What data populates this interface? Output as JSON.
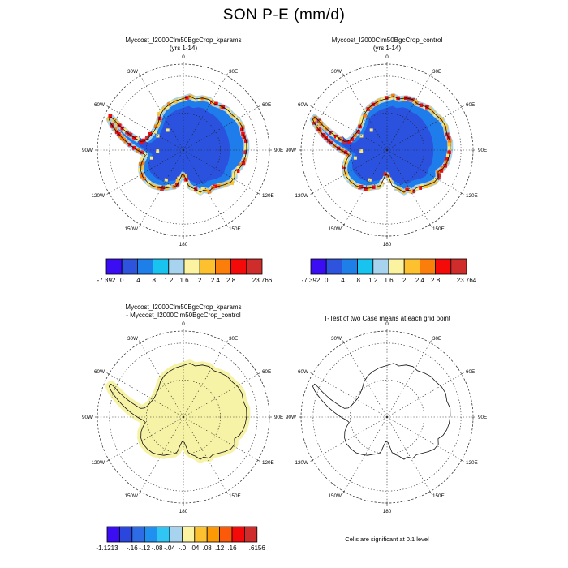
{
  "figure_title": "SON P-E (mm/d)",
  "panels": [
    {
      "id": "kparams",
      "type": "field",
      "title_line1": "Myccost_I2000Clm50BgcCrop_kparams",
      "title_line2": "(yrs 1-14)"
    },
    {
      "id": "control",
      "type": "field",
      "title_line1": "Myccost_I2000Clm50BgcCrop_control",
      "title_line2": "(yrs 1-14)"
    },
    {
      "id": "diff",
      "type": "diff",
      "title_line1": "Myccost_I2000Clm50BgcCrop_kparams",
      "title_line2": "- Myccost_I2000Clm50BgcCrop_control"
    },
    {
      "id": "ttest",
      "type": "ttest",
      "title_line1": "T-Test of two Case means at each grid point",
      "title_line2": "",
      "caption": "Cells are significant at 0.1 level"
    }
  ],
  "graticule_labels": [
    "0",
    "30E",
    "60E",
    "90E",
    "120E",
    "150E",
    "180",
    "150W",
    "120W",
    "90W",
    "60W",
    "30W"
  ],
  "map_colors": {
    "interior_dark": "#2b52de",
    "band_mid": "#1f7ceb",
    "band_light": "#a8d3ee",
    "fringe": [
      "#fde97a",
      "#fdc02e",
      "#fb7d0a",
      "#f50a0a",
      "#cf2c2c"
    ],
    "diff_fill": "#f7f3a6"
  },
  "colorbars": [
    {
      "panel": "kparams",
      "colors": [
        "#3a0df2",
        "#2e54dd",
        "#1f7fe8",
        "#19c3f0",
        "#a8d3ee",
        "#fbf3a0",
        "#fdc02e",
        "#fb7d0a",
        "#f50a0a",
        "#cf2c2c"
      ],
      "labels": [
        {
          "t": "-7.392",
          "e": 0
        },
        {
          "t": "0",
          "e": 1
        },
        {
          "t": ".4",
          "e": 2
        },
        {
          "t": ".8",
          "e": 3
        },
        {
          "t": "1.2",
          "e": 4
        },
        {
          "t": "1.6",
          "e": 5
        },
        {
          "t": "2",
          "e": 6
        },
        {
          "t": "2.4",
          "e": 7
        },
        {
          "t": "2.8",
          "e": 8
        },
        {
          "t": "23.766",
          "e": 10
        }
      ]
    },
    {
      "panel": "control",
      "colors": [
        "#3a0df2",
        "#2e54dd",
        "#1f7fe8",
        "#19c3f0",
        "#a8d3ee",
        "#fbf3a0",
        "#fdc02e",
        "#fb7d0a",
        "#f50a0a",
        "#cf2c2c"
      ],
      "labels": [
        {
          "t": "-7.392",
          "e": 0
        },
        {
          "t": "0",
          "e": 1
        },
        {
          "t": ".4",
          "e": 2
        },
        {
          "t": ".8",
          "e": 3
        },
        {
          "t": "1.2",
          "e": 4
        },
        {
          "t": "1.6",
          "e": 5
        },
        {
          "t": "2",
          "e": 6
        },
        {
          "t": "2.4",
          "e": 7
        },
        {
          "t": "2.8",
          "e": 8
        },
        {
          "t": "23.764",
          "e": 10
        }
      ]
    },
    {
      "panel": "diff",
      "colors": [
        "#3a0df2",
        "#2a46dd",
        "#2e6ce6",
        "#1f90f0",
        "#30c5f2",
        "#a8d3ee",
        "#fbf3a0",
        "#fdc02e",
        "#fc9a06",
        "#fb5a0a",
        "#f50a0a",
        "#cf2c2c"
      ],
      "labels": [
        {
          "t": "-1.1213",
          "e": 0
        },
        {
          "t": "-.16",
          "e": 2
        },
        {
          "t": "-.12",
          "e": 3
        },
        {
          "t": "-.08",
          "e": 4
        },
        {
          "t": "-.04",
          "e": 5
        },
        {
          "t": "-.0",
          "e": 6
        },
        {
          "t": ".04",
          "e": 7
        },
        {
          "t": ".08",
          "e": 8
        },
        {
          "t": ".12",
          "e": 9
        },
        {
          "t": ".16",
          "e": 10
        },
        {
          "t": ".6156",
          "e": 12
        }
      ]
    }
  ],
  "chart_data": [
    {
      "type": "heatmap",
      "projection": "south polar stereographic",
      "region": "Antarctica",
      "title": "Myccost_I2000Clm50BgcCrop_kparams (yrs 1-14)",
      "units": "mm/d",
      "levels": [
        0,
        0.4,
        0.8,
        1.2,
        1.6,
        2,
        2.4,
        2.8
      ],
      "min": -7.392,
      "max": 23.766,
      "palette": [
        "#3a0df2",
        "#2e54dd",
        "#1f7fe8",
        "#19c3f0",
        "#a8d3ee",
        "#fbf3a0",
        "#fdc02e",
        "#fb7d0a",
        "#f50a0a",
        "#cf2c2c"
      ],
      "pattern": "interior plateau 0-0.4 mm/d (dark blue), 0.4-1.2 band (mid/light blue), coastal fringe 1.6 to >2.8 mm/d (yellow-orange-red), Antarctic Peninsula mostly red"
    },
    {
      "type": "heatmap",
      "projection": "south polar stereographic",
      "region": "Antarctica",
      "title": "Myccost_I2000Clm50BgcCrop_control (yrs 1-14)",
      "units": "mm/d",
      "levels": [
        0,
        0.4,
        0.8,
        1.2,
        1.6,
        2,
        2.4,
        2.8
      ],
      "min": -7.392,
      "max": 23.764,
      "palette": [
        "#3a0df2",
        "#2e54dd",
        "#1f7fe8",
        "#19c3f0",
        "#a8d3ee",
        "#fbf3a0",
        "#fdc02e",
        "#fb7d0a",
        "#f50a0a",
        "#cf2c2c"
      ],
      "pattern": "nearly identical to kparams case: dark blue interior, blue band, yellow-red coastal fringe, small white patch near Ross Ice Shelf"
    },
    {
      "type": "heatmap",
      "projection": "south polar stereographic",
      "region": "Antarctica",
      "title": "Myccost_I2000Clm50BgcCrop_kparams - Myccost_I2000Clm50BgcCrop_control",
      "units": "mm/d",
      "levels": [
        -0.16,
        -0.12,
        -0.08,
        -0.04,
        0,
        0.04,
        0.08,
        0.12,
        0.16
      ],
      "min": -1.1213,
      "max": 0.6156,
      "palette": [
        "#3a0df2",
        "#2a46dd",
        "#2e6ce6",
        "#1f90f0",
        "#30c5f2",
        "#a8d3ee",
        "#fbf3a0",
        "#fdc02e",
        "#fc9a06",
        "#fb5a0a",
        "#f50a0a",
        "#cf2c2c"
      ],
      "pattern": "difference is uniformly in the 0 to 0.04 mm/d bin: whole continent pale yellow"
    },
    {
      "type": "map",
      "projection": "south polar stereographic",
      "region": "Antarctica",
      "title": "T-Test of two Case means at each grid point",
      "caption": "Cells are significant at 0.1 level",
      "pattern": "coastline outline only, no grid cells shaded significant"
    }
  ]
}
